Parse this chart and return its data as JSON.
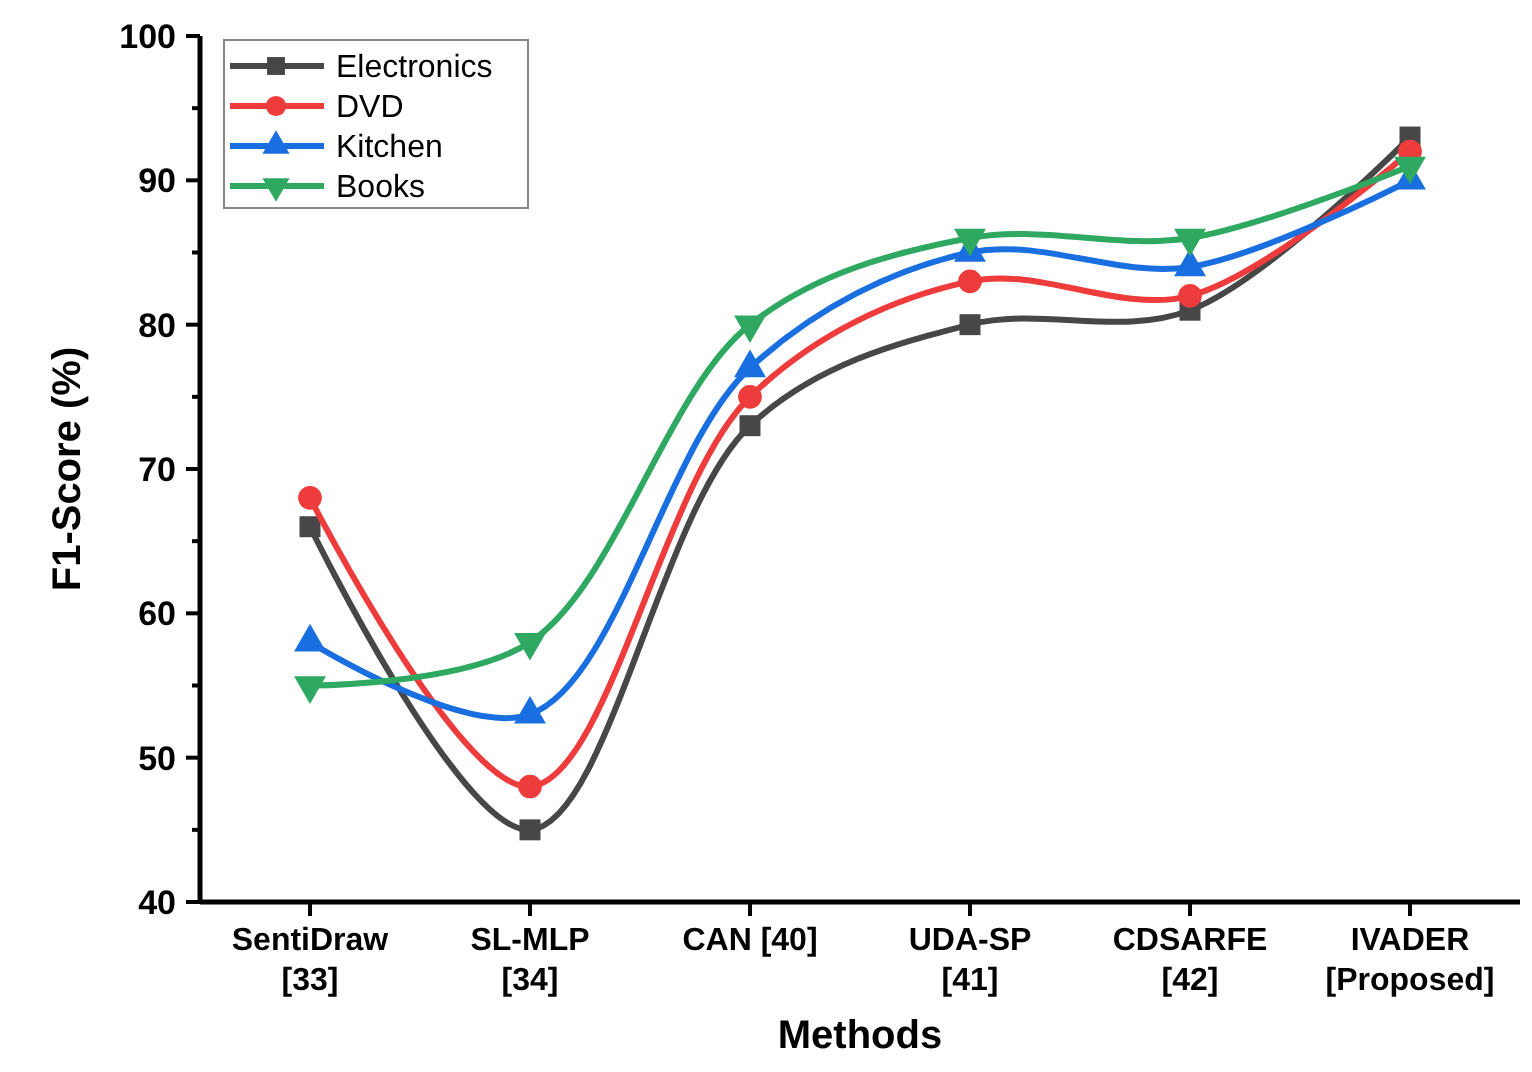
{
  "chart_data": {
    "type": "line",
    "xlabel": "Methods",
    "ylabel": "F1-Score (%)",
    "categories": [
      "SentiDraw\n[33]",
      "SL-MLP\n[34]",
      "CAN [40]",
      "UDA-SP\n[41]",
      "CDSARFE\n[42]",
      "IVADER\n[Proposed]"
    ],
    "ylim": [
      40,
      100
    ],
    "yticks": [
      40,
      {
        "value": 45,
        "label": null
      },
      50,
      {
        "value": 55,
        "label": null
      },
      60,
      {
        "value": 65,
        "label": null
      },
      70,
      {
        "value": 75,
        "label": null
      },
      80,
      {
        "value": 85,
        "label": null
      },
      90,
      {
        "value": 95,
        "label": null
      },
      100
    ],
    "grid": false,
    "legend": "top left",
    "line_style": "solid",
    "series": [
      {
        "name": "Electronics",
        "color": "#474747",
        "marker": "square",
        "values": [
          66,
          45,
          73,
          80,
          81,
          93
        ]
      },
      {
        "name": "DVD",
        "color": "#ee3b3b",
        "marker": "circle",
        "values": [
          68,
          48,
          75,
          83,
          82,
          92
        ]
      },
      {
        "name": "Kitchen",
        "color": "#1a6fe0",
        "marker": "triangle",
        "values": [
          58,
          53,
          77,
          85,
          84,
          90
        ]
      },
      {
        "name": "Books",
        "color": "#2fa862",
        "marker": "triangle-down",
        "values": [
          55,
          58,
          80,
          86,
          86,
          91
        ]
      }
    ]
  }
}
